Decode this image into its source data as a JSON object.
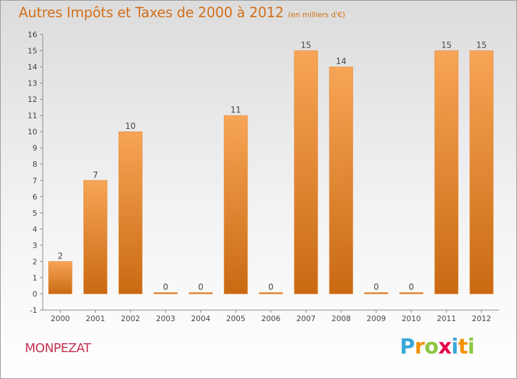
{
  "title": "Autres Impôts et Taxes de 2000 à 2012",
  "title_unit": "(en milliers d'€)",
  "commune": "MONPEZAT",
  "logo": {
    "text": "Proxiti",
    "letter_colors": [
      "#3aa7d9",
      "#f39200",
      "#8dc63f",
      "#e40046",
      "#3aa7d9",
      "#f39200",
      "#8dc63f"
    ]
  },
  "colors": {
    "bar_light": "#f7a556",
    "bar_dark": "#c96a12",
    "title": "#d1701a",
    "commune": "#c5314f"
  },
  "chart_data": {
    "type": "bar",
    "categories": [
      "2000",
      "2001",
      "2002",
      "2003",
      "2004",
      "2005",
      "2006",
      "2007",
      "2008",
      "2009",
      "2010",
      "2011",
      "2012"
    ],
    "values": [
      2,
      7,
      10,
      0,
      0,
      11,
      0,
      15,
      14,
      0,
      0,
      15,
      15
    ],
    "data_labels": [
      "2",
      "7",
      "10",
      "0",
      "0",
      "11",
      "0",
      "15",
      "14",
      "0",
      "0",
      "15",
      "15"
    ],
    "y_ticks": [
      "-1",
      "0",
      "1",
      "2",
      "3",
      "4",
      "5",
      "6",
      "7",
      "8",
      "9",
      "10",
      "11",
      "12",
      "13",
      "14",
      "15",
      "16"
    ],
    "ylim": [
      -1,
      16
    ],
    "grid": false
  }
}
